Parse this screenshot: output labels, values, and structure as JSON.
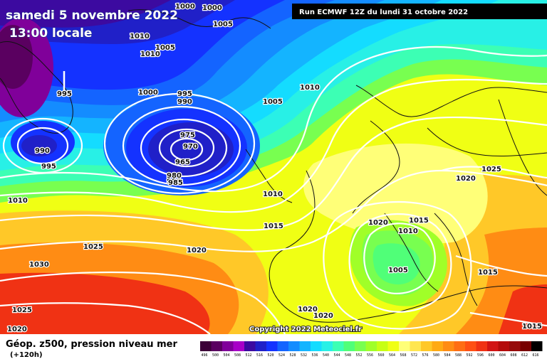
{
  "header": {
    "date_text": "samedi 5 novembre 2022",
    "time_text": "13:00 locale",
    "run_text": "Run ECMWF 12Z du lundi 31 octobre 2022"
  },
  "footer": {
    "title": "Géop. z500, pression niveau mer",
    "subtitle": "(+120h)",
    "copyright": "Copyright 2022 Meteociel.fr"
  },
  "legend": {
    "ticks": [
      "496",
      "500",
      "504",
      "508",
      "512",
      "516",
      "520",
      "524",
      "528",
      "532",
      "536",
      "540",
      "544",
      "548",
      "552",
      "556",
      "560",
      "564",
      "568",
      "572",
      "576",
      "580",
      "584",
      "588",
      "592",
      "596",
      "600",
      "604",
      "608",
      "612",
      "616"
    ],
    "colors": [
      "#3c0038",
      "#5a0060",
      "#80009a",
      "#a800c8",
      "#3c0aa0",
      "#2020c8",
      "#1432ff",
      "#1464ff",
      "#148cff",
      "#14b4ff",
      "#14dcff",
      "#28f0e6",
      "#3cffb4",
      "#50ff78",
      "#78ff50",
      "#a0ff28",
      "#c8ff14",
      "#f0ff14",
      "#ffff78",
      "#ffe650",
      "#ffc828",
      "#ffaa14",
      "#ff8c14",
      "#ff6e14",
      "#ff5014",
      "#f03214",
      "#d21414",
      "#b40a0a",
      "#960a0a",
      "#780000",
      "#000000"
    ]
  },
  "isobar_labels": [
    "1000",
    "1000",
    "1005",
    "1010",
    "1005",
    "1010",
    "995",
    "990",
    "1000",
    "995",
    "990",
    "995",
    "990",
    "975",
    "970",
    "965",
    "980",
    "985",
    "1005",
    "1010",
    "1010",
    "1010",
    "1015",
    "1020",
    "1025",
    "1030",
    "1025",
    "1020",
    "1020",
    "1025",
    "1020",
    "1015",
    "1010",
    "1005",
    "1015",
    "1020",
    "1020",
    "1015"
  ]
}
